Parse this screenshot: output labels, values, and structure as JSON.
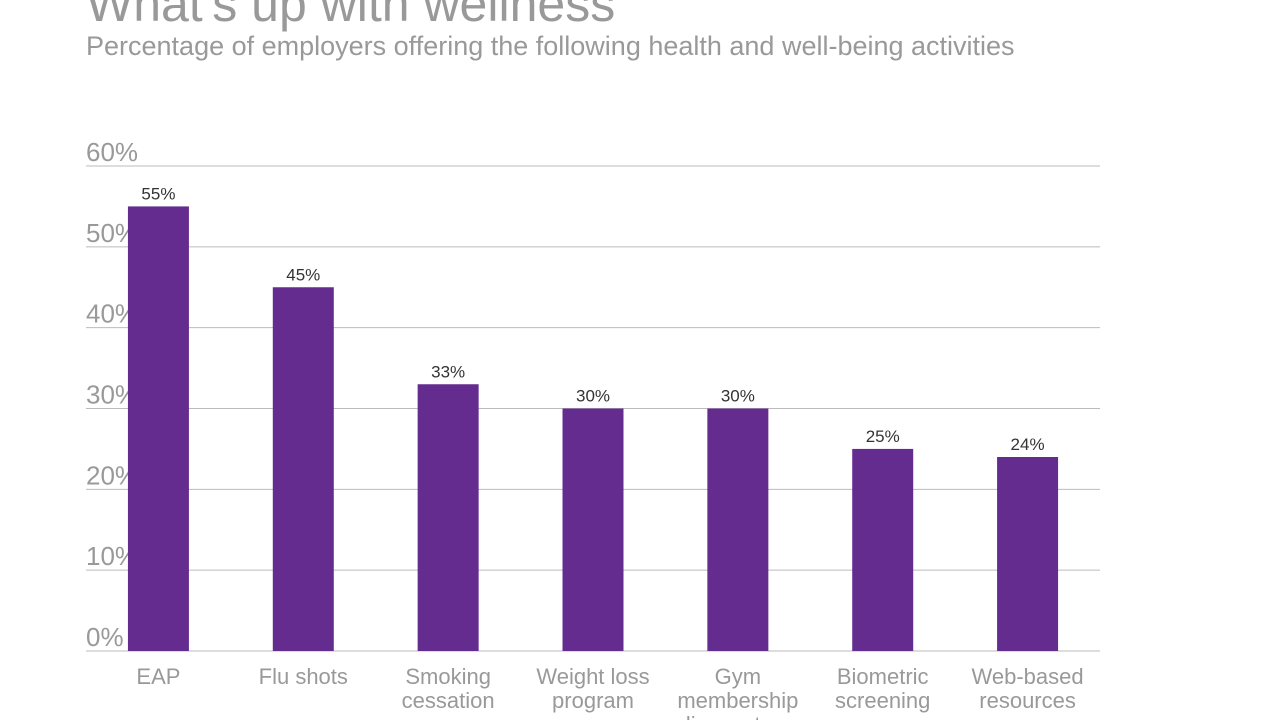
{
  "slide": {
    "title": "What's up with wellness",
    "subtitle": "Percentage of employers offering the following health and well-being activities"
  },
  "chart_data": {
    "type": "bar",
    "title": "What's up with wellness",
    "subtitle": "Percentage of employers offering the following health and well-being activities",
    "categories": [
      "EAP",
      "Flu shots",
      "Smoking cessation program",
      "Weight loss program",
      "Gym membership discounts or",
      "Biometric screening",
      "Web-based resources"
    ],
    "values": [
      55,
      45,
      33,
      30,
      30,
      25,
      24
    ],
    "data_labels": [
      "55%",
      "45%",
      "33%",
      "30%",
      "30%",
      "25%",
      "24%"
    ],
    "ylim": [
      0,
      60
    ],
    "yticks": [
      "0%",
      "10%",
      "20%",
      "30%",
      "40%",
      "50%",
      "60%"
    ],
    "xlabel": "",
    "ylabel": "",
    "grid": true,
    "legend": "none",
    "colors": {
      "bar": "#652c8f",
      "grid": "#bbbbbb",
      "axis_text": "#999999",
      "label_text": "#333333"
    }
  }
}
